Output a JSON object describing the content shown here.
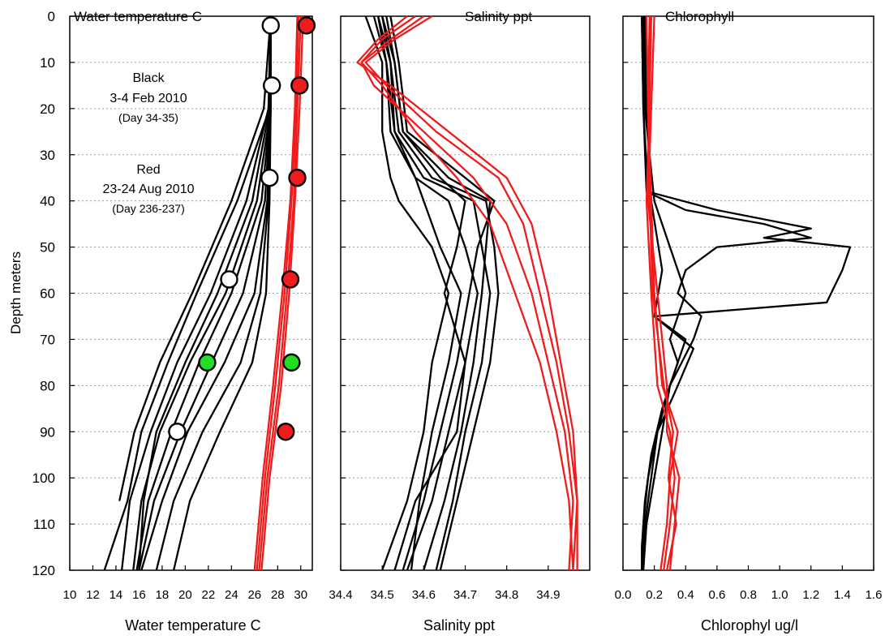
{
  "figure": {
    "y_axis_label": "Depth meters",
    "y_ticks": [
      0,
      10,
      20,
      30,
      40,
      50,
      60,
      70,
      80,
      90,
      100,
      110,
      120
    ],
    "ylim": [
      0,
      120
    ],
    "y_inverted": true,
    "grid": "horizontal dotted"
  },
  "colors": {
    "black_series": "#000000",
    "red_series": "#ee1c1c",
    "green_marker": "#22dd22",
    "white_marker": "#ffffff",
    "grid": "#9a9a9a"
  },
  "chart_data": [
    {
      "type": "line",
      "panel": "temperature",
      "title": "Water temperature C",
      "xlabel": "Water temperature C",
      "ylabel": "Depth meters",
      "xlim": [
        10,
        31
      ],
      "x_ticks": [
        10,
        12,
        14,
        16,
        18,
        20,
        22,
        24,
        26,
        28,
        30
      ],
      "x_tick_labels": [
        "10",
        "12",
        "14",
        "16",
        "18",
        "20",
        "22",
        "24",
        "26",
        "28",
        "30"
      ],
      "annotations": [
        {
          "lines": [
            "Black",
            "3-4 Feb 2010",
            "(Day 34-35)"
          ]
        },
        {
          "lines": [
            "Red",
            "23-24 Aug 2010",
            "(Day 236-237)"
          ]
        }
      ],
      "series": [
        {
          "color": "black",
          "depth": [
            0,
            20,
            40,
            60,
            75,
            90,
            105,
            120
          ],
          "values": [
            27.4,
            27.3,
            24.5,
            21.0,
            18.5,
            16.2,
            15.0,
            13.0
          ]
        },
        {
          "color": "black",
          "depth": [
            0,
            20,
            40,
            60,
            75,
            90,
            105,
            120
          ],
          "values": [
            27.4,
            27.2,
            25.3,
            22.2,
            19.3,
            17.0,
            15.2,
            14.5
          ]
        },
        {
          "color": "black",
          "depth": [
            0,
            20,
            40,
            60,
            75,
            90,
            105,
            120
          ],
          "values": [
            27.4,
            27.4,
            26.2,
            23.5,
            20.4,
            17.8,
            16.2,
            15.5
          ]
        },
        {
          "color": "black",
          "depth": [
            0,
            20,
            40,
            60,
            75,
            90,
            105,
            120
          ],
          "values": [
            27.4,
            27.4,
            26.6,
            24.0,
            21.2,
            18.8,
            16.8,
            15.8
          ]
        },
        {
          "color": "black",
          "depth": [
            0,
            20,
            40,
            60,
            75,
            90,
            105,
            120
          ],
          "values": [
            27.4,
            27.4,
            26.9,
            25.0,
            22.3,
            19.6,
            17.3,
            16.0
          ]
        },
        {
          "color": "black",
          "depth": [
            0,
            20,
            40,
            60,
            75,
            90,
            105,
            120
          ],
          "values": [
            27.4,
            27.4,
            27.1,
            26.0,
            23.4,
            20.2,
            18.0,
            16.2
          ]
        },
        {
          "color": "black",
          "depth": [
            0,
            20,
            40,
            60,
            75,
            90,
            105,
            120
          ],
          "values": [
            27.4,
            27.4,
            27.2,
            26.5,
            24.8,
            21.5,
            19.0,
            17.5
          ]
        },
        {
          "color": "black",
          "depth": [
            0,
            20,
            40,
            60,
            75,
            90,
            105,
            120
          ],
          "values": [
            27.4,
            27.4,
            27.3,
            27.0,
            25.8,
            23.0,
            20.4,
            19.0
          ]
        },
        {
          "color": "black",
          "depth": [
            0,
            20,
            40,
            60,
            75,
            90,
            105
          ],
          "values": [
            27.4,
            26.8,
            24.0,
            20.6,
            17.8,
            15.6,
            14.3
          ]
        },
        {
          "color": "black",
          "depth": [
            0,
            20,
            40,
            60,
            75,
            90,
            105,
            120
          ],
          "values": [
            27.4,
            27.3,
            25.8,
            22.8,
            20.0,
            17.5,
            16.4,
            16.0
          ]
        },
        {
          "color": "red",
          "depth": [
            0,
            20,
            40,
            60,
            80,
            100,
            120
          ],
          "values": [
            30.2,
            29.9,
            29.5,
            29.0,
            28.3,
            27.3,
            26.6
          ]
        },
        {
          "color": "red",
          "depth": [
            0,
            20,
            40,
            60,
            80,
            100,
            120
          ],
          "values": [
            30.0,
            29.7,
            29.4,
            28.8,
            28.1,
            27.1,
            26.4
          ]
        },
        {
          "color": "red",
          "depth": [
            0,
            20,
            40,
            60,
            80,
            100,
            120
          ],
          "values": [
            29.8,
            29.6,
            29.2,
            28.6,
            27.8,
            26.9,
            26.2
          ]
        },
        {
          "color": "red",
          "depth": [
            0,
            20,
            40,
            60,
            80,
            100,
            120
          ],
          "values": [
            29.7,
            29.5,
            29.1,
            28.4,
            27.6,
            26.7,
            26.0
          ]
        }
      ],
      "markers": [
        {
          "depth": 2,
          "value": 27.4,
          "fill": "white"
        },
        {
          "depth": 15,
          "value": 27.5,
          "fill": "white"
        },
        {
          "depth": 35,
          "value": 27.3,
          "fill": "white"
        },
        {
          "depth": 57,
          "value": 23.8,
          "fill": "white"
        },
        {
          "depth": 75,
          "value": 21.9,
          "fill": "green"
        },
        {
          "depth": 90,
          "value": 19.3,
          "fill": "white"
        },
        {
          "depth": 2,
          "value": 30.5,
          "fill": "red"
        },
        {
          "depth": 15,
          "value": 29.9,
          "fill": "red"
        },
        {
          "depth": 35,
          "value": 29.7,
          "fill": "red"
        },
        {
          "depth": 57,
          "value": 29.1,
          "fill": "red"
        },
        {
          "depth": 75,
          "value": 29.2,
          "fill": "green"
        },
        {
          "depth": 90,
          "value": 28.7,
          "fill": "red"
        }
      ]
    },
    {
      "type": "line",
      "panel": "salinity",
      "title": "Salinity ppt",
      "xlabel": "Salinity ppt",
      "ylabel": "Depth meters",
      "xlim": [
        34.4,
        35.0
      ],
      "x_ticks": [
        34.4,
        34.5,
        34.6,
        34.7,
        34.8,
        34.9
      ],
      "x_tick_labels": [
        "34.4",
        "34.5",
        "34.6",
        "34.7",
        "34.8",
        "34.9"
      ],
      "series": [
        {
          "color": "black",
          "depth": [
            0,
            10,
            25,
            35,
            40,
            50,
            60,
            75,
            90,
            105,
            120
          ],
          "values": [
            34.46,
            34.5,
            34.5,
            34.52,
            34.54,
            34.62,
            34.66,
            34.62,
            34.6,
            34.56,
            34.5
          ]
        },
        {
          "color": "black",
          "depth": [
            0,
            10,
            25,
            35,
            40,
            50,
            60,
            75,
            90,
            105,
            120
          ],
          "values": [
            34.48,
            34.51,
            34.52,
            34.58,
            34.66,
            34.7,
            34.73,
            34.7,
            34.66,
            34.62,
            34.56
          ]
        },
        {
          "color": "black",
          "depth": [
            0,
            10,
            25,
            35,
            40,
            50,
            60,
            75,
            90,
            105,
            120
          ],
          "values": [
            34.49,
            34.52,
            34.53,
            34.6,
            34.72,
            34.74,
            34.76,
            34.74,
            34.7,
            34.67,
            34.63
          ]
        },
        {
          "color": "black",
          "depth": [
            0,
            10,
            25,
            35,
            40,
            50,
            60,
            75,
            90,
            105,
            120
          ],
          "values": [
            34.5,
            34.52,
            34.54,
            34.62,
            34.75,
            34.77,
            34.78,
            34.76,
            34.72,
            34.68,
            34.64
          ]
        },
        {
          "color": "black",
          "depth": [
            0,
            10,
            25,
            35,
            40,
            50,
            60,
            75,
            90,
            105,
            120
          ],
          "values": [
            34.51,
            34.53,
            34.55,
            34.66,
            34.76,
            34.75,
            34.74,
            34.72,
            34.69,
            34.65,
            34.6
          ]
        },
        {
          "color": "black",
          "depth": [
            0,
            10,
            25,
            35,
            40,
            50,
            60,
            75,
            90,
            105,
            120
          ],
          "values": [
            34.52,
            34.54,
            34.56,
            34.7,
            34.77,
            34.73,
            34.71,
            34.68,
            34.64,
            34.6,
            34.55
          ]
        },
        {
          "color": "black",
          "depth": [
            0,
            10,
            25,
            35,
            40,
            50,
            60,
            75,
            90,
            105,
            120
          ],
          "values": [
            34.5,
            34.53,
            34.55,
            34.64,
            34.7,
            34.68,
            34.65,
            34.7,
            34.68,
            34.58,
            34.53
          ]
        },
        {
          "color": "black",
          "depth": [
            0,
            10,
            25,
            35,
            40,
            50,
            60,
            75,
            90,
            105,
            120
          ],
          "values": [
            34.49,
            34.51,
            34.53,
            34.58,
            34.6,
            34.64,
            34.69,
            34.66,
            34.62,
            34.59,
            34.57
          ]
        },
        {
          "color": "red",
          "depth": [
            0,
            5,
            10,
            15,
            25,
            35,
            45,
            60,
            75,
            90,
            105,
            120
          ],
          "values": [
            34.6,
            34.52,
            34.45,
            34.5,
            34.58,
            34.68,
            34.76,
            34.82,
            34.88,
            34.92,
            34.95,
            34.96
          ]
        },
        {
          "color": "red",
          "depth": [
            0,
            5,
            10,
            15,
            25,
            35,
            45,
            60,
            75,
            90,
            105,
            120
          ],
          "values": [
            34.58,
            34.5,
            34.45,
            34.48,
            34.6,
            34.72,
            34.8,
            34.86,
            34.9,
            34.94,
            34.96,
            34.95
          ]
        },
        {
          "color": "red",
          "depth": [
            0,
            5,
            10,
            15,
            25,
            35,
            45,
            60,
            75,
            90,
            105,
            120
          ],
          "values": [
            34.62,
            34.53,
            34.46,
            34.51,
            34.63,
            34.78,
            34.84,
            34.88,
            34.92,
            34.95,
            34.97,
            34.96
          ]
        },
        {
          "color": "red",
          "depth": [
            0,
            5,
            10,
            15,
            25,
            35,
            45,
            60,
            75,
            90,
            105,
            120
          ],
          "values": [
            34.56,
            34.49,
            34.44,
            34.52,
            34.66,
            34.8,
            34.86,
            34.9,
            34.93,
            34.96,
            34.97,
            34.97
          ]
        }
      ]
    },
    {
      "type": "line",
      "panel": "chlorophyll",
      "title": "Chlorophyll",
      "xlabel": "Chlorophyl ug/l",
      "ylabel": "Depth meters",
      "xlim": [
        0.0,
        1.6
      ],
      "x_ticks": [
        0.0,
        0.2,
        0.4,
        0.6,
        0.8,
        1.0,
        1.2,
        1.4,
        1.6
      ],
      "x_tick_labels": [
        "0.0",
        "0.2",
        "0.4",
        "0.6",
        "0.8",
        "1.0",
        "1.2",
        "1.4",
        "1.6"
      ],
      "series": [
        {
          "color": "black",
          "depth": [
            0,
            20,
            38,
            42,
            46,
            48,
            50,
            55,
            62,
            65,
            70,
            80,
            90,
            100,
            110,
            120
          ],
          "values": [
            0.12,
            0.13,
            0.16,
            0.6,
            1.2,
            0.9,
            1.45,
            1.4,
            1.3,
            0.2,
            0.4,
            0.3,
            0.25,
            0.2,
            0.15,
            0.13
          ]
        },
        {
          "color": "black",
          "depth": [
            0,
            20,
            38,
            42,
            45,
            48,
            50,
            55,
            60,
            65,
            70,
            80,
            90,
            100,
            110,
            120
          ],
          "values": [
            0.12,
            0.13,
            0.15,
            0.4,
            0.9,
            1.2,
            0.6,
            0.4,
            0.35,
            0.5,
            0.45,
            0.3,
            0.22,
            0.18,
            0.14,
            0.12
          ]
        },
        {
          "color": "black",
          "depth": [
            0,
            20,
            40,
            50,
            60,
            70,
            75,
            85,
            95,
            105,
            115,
            120
          ],
          "values": [
            0.13,
            0.14,
            0.2,
            0.3,
            0.4,
            0.3,
            0.35,
            0.25,
            0.18,
            0.14,
            0.12,
            0.12
          ]
        },
        {
          "color": "black",
          "depth": [
            0,
            20,
            40,
            55,
            65,
            72,
            80,
            90,
            100,
            110,
            120
          ],
          "values": [
            0.14,
            0.15,
            0.18,
            0.25,
            0.2,
            0.45,
            0.35,
            0.22,
            0.16,
            0.13,
            0.12
          ]
        },
        {
          "color": "red",
          "depth": [
            0,
            20,
            40,
            60,
            80,
            90,
            100,
            110,
            120
          ],
          "values": [
            0.18,
            0.17,
            0.15,
            0.18,
            0.22,
            0.3,
            0.33,
            0.3,
            0.26
          ]
        },
        {
          "color": "red",
          "depth": [
            0,
            20,
            40,
            60,
            80,
            90,
            100,
            110,
            120
          ],
          "values": [
            0.15,
            0.16,
            0.18,
            0.2,
            0.25,
            0.35,
            0.3,
            0.28,
            0.24
          ]
        },
        {
          "color": "red",
          "depth": [
            0,
            20,
            40,
            60,
            80,
            90,
            100,
            110,
            120
          ],
          "values": [
            0.2,
            0.18,
            0.16,
            0.22,
            0.28,
            0.28,
            0.36,
            0.33,
            0.3
          ]
        },
        {
          "color": "red",
          "depth": [
            0,
            20,
            40,
            60,
            80,
            90,
            100,
            110,
            120
          ],
          "values": [
            0.17,
            0.16,
            0.17,
            0.19,
            0.26,
            0.32,
            0.29,
            0.34,
            0.28
          ]
        }
      ]
    }
  ]
}
